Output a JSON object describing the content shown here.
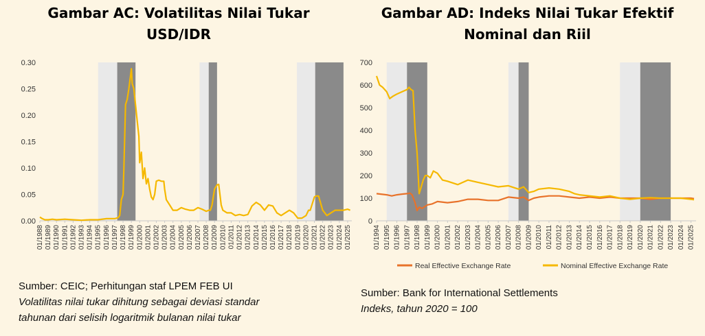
{
  "chart_data": [
    {
      "type": "line",
      "title_line1": "Gambar AC: Volatilitas Nilai Tukar",
      "title_line2": "USD/IDR",
      "ylim": [
        0,
        0.3
      ],
      "yticks": [
        "0.00",
        "0.05",
        "0.10",
        "0.15",
        "0.20",
        "0.25",
        "0.30"
      ],
      "xlim": [
        1988,
        2025.5
      ],
      "xticks": [
        "01/1988",
        "01/1989",
        "01/1990",
        "01/1991",
        "01/1992",
        "01/1993",
        "01/1994",
        "01/1995",
        "01/1996",
        "01/1997",
        "01/1998",
        "01/1999",
        "01/2000",
        "01/2001",
        "01/2002",
        "01/2003",
        "01/2004",
        "01/2005",
        "01/2006",
        "01/2007",
        "01/2008",
        "01/2009",
        "01/2010",
        "01/2011",
        "01/2012",
        "01/2013",
        "01/2014",
        "01/2015",
        "01/2016",
        "01/2017",
        "01/2018",
        "01/2019",
        "01/2020",
        "01/2021",
        "01/2022",
        "01/2023",
        "01/2024",
        "01/2025"
      ],
      "shading": [
        {
          "from": 1995.0,
          "to": 1997.3,
          "color": "#e9e9e9"
        },
        {
          "from": 1997.3,
          "to": 1999.5,
          "color": "#8a8a8a"
        },
        {
          "from": 2007.2,
          "to": 2008.3,
          "color": "#e9e9e9"
        },
        {
          "from": 2008.3,
          "to": 2009.3,
          "color": "#8a8a8a"
        },
        {
          "from": 2018.9,
          "to": 2021.1,
          "color": "#e9e9e9"
        },
        {
          "from": 2021.1,
          "to": 2024.5,
          "color": "#8a8a8a"
        }
      ],
      "series": [
        {
          "color": "#f5b800",
          "x": [
            1988.0,
            1988.3,
            1988.6,
            1989.0,
            1989.5,
            1990.0,
            1991.0,
            1992.0,
            1993.0,
            1994.0,
            1995.0,
            1996.0,
            1997.0,
            1997.4,
            1997.6,
            1997.8,
            1998.0,
            1998.1,
            1998.3,
            1998.5,
            1998.7,
            1998.9,
            1999.0,
            1999.1,
            1999.3,
            1999.5,
            1999.7,
            1999.9,
            2000.0,
            2000.2,
            2000.4,
            2000.6,
            2000.8,
            2001.0,
            2001.2,
            2001.4,
            2001.6,
            2001.8,
            2002.0,
            2002.3,
            2002.6,
            2002.9,
            2003.0,
            2003.2,
            2003.6,
            2004.0,
            2004.5,
            2005.0,
            2005.5,
            2006.0,
            2006.5,
            2007.0,
            2007.5,
            2008.0,
            2008.3,
            2008.5,
            2008.7,
            2009.0,
            2009.3,
            2009.5,
            2009.8,
            2010.0,
            2010.5,
            2011.0,
            2011.5,
            2012.0,
            2012.5,
            2013.0,
            2013.5,
            2014.0,
            2014.5,
            2015.0,
            2015.5,
            2016.0,
            2016.5,
            2017.0,
            2017.5,
            2018.0,
            2018.5,
            2019.0,
            2019.5,
            2020.0,
            2020.3,
            2020.5,
            2021.0,
            2021.2,
            2021.5,
            2022.0,
            2022.5,
            2023.0,
            2023.5,
            2024.0,
            2024.5,
            2025.0,
            2025.3
          ],
          "y": [
            0.007,
            0.004,
            0.002,
            0.002,
            0.003,
            0.002,
            0.003,
            0.002,
            0.001,
            0.002,
            0.002,
            0.004,
            0.004,
            0.006,
            0.01,
            0.04,
            0.05,
            0.1,
            0.22,
            0.23,
            0.25,
            0.275,
            0.288,
            0.26,
            0.25,
            0.22,
            0.19,
            0.16,
            0.11,
            0.13,
            0.08,
            0.1,
            0.07,
            0.08,
            0.06,
            0.045,
            0.04,
            0.05,
            0.075,
            0.077,
            0.075,
            0.075,
            0.06,
            0.04,
            0.03,
            0.02,
            0.02,
            0.025,
            0.022,
            0.02,
            0.02,
            0.025,
            0.022,
            0.018,
            0.02,
            0.02,
            0.03,
            0.06,
            0.068,
            0.069,
            0.03,
            0.02,
            0.015,
            0.015,
            0.01,
            0.012,
            0.01,
            0.012,
            0.028,
            0.035,
            0.03,
            0.02,
            0.03,
            0.028,
            0.015,
            0.01,
            0.015,
            0.02,
            0.015,
            0.005,
            0.005,
            0.01,
            0.02,
            0.02,
            0.045,
            0.047,
            0.047,
            0.02,
            0.01,
            0.015,
            0.02,
            0.02,
            0.02,
            0.022,
            0.02
          ]
        }
      ]
    },
    {
      "type": "line",
      "title_line1": "Gambar AD: Indeks Nilai Tukar Efektif",
      "title_line2": "Nominal dan Riil",
      "ylim": [
        0,
        700
      ],
      "yticks": [
        "0",
        "100",
        "200",
        "300",
        "400",
        "500",
        "600",
        "700"
      ],
      "xlim": [
        1994,
        2025.5
      ],
      "xticks": [
        "01/1994",
        "01/1995",
        "01/1996",
        "01/1997",
        "01/1998",
        "01/1999",
        "01/2000",
        "01/2001",
        "01/2002",
        "01/2003",
        "01/2004",
        "01/2005",
        "01/2006",
        "01/2007",
        "01/2008",
        "01/2009",
        "01/2010",
        "01/2011",
        "01/2012",
        "01/2013",
        "01/2014",
        "01/2015",
        "01/2016",
        "01/2017",
        "01/2018",
        "01/2019",
        "01/2020",
        "01/2021",
        "01/2022",
        "01/2023",
        "01/2024",
        "01/2025"
      ],
      "shading": [
        {
          "from": 1995.0,
          "to": 1997.0,
          "color": "#e9e9e9"
        },
        {
          "from": 1997.0,
          "to": 1999.0,
          "color": "#8a8a8a"
        },
        {
          "from": 2007.0,
          "to": 2008.0,
          "color": "#e9e9e9"
        },
        {
          "from": 2008.0,
          "to": 2009.0,
          "color": "#8a8a8a"
        },
        {
          "from": 2018.0,
          "to": 2020.0,
          "color": "#e9e9e9"
        },
        {
          "from": 2020.0,
          "to": 2023.0,
          "color": "#8a8a8a"
        }
      ],
      "legend": [
        {
          "name": "Real Effective Exchange Rate",
          "color": "#e8722a"
        },
        {
          "name": "Nominal Effective Exchange Rate",
          "color": "#f5b800"
        }
      ],
      "series": [
        {
          "name": "Real Effective Exchange Rate",
          "color": "#e8722a",
          "x": [
            1994.0,
            1995.0,
            1995.5,
            1996.0,
            1996.5,
            1997.0,
            1997.3,
            1997.5,
            1997.8,
            1998.0,
            1998.2,
            1998.5,
            1999.0,
            1999.5,
            2000.0,
            2001.0,
            2002.0,
            2003.0,
            2004.0,
            2005.0,
            2006.0,
            2007.0,
            2008.0,
            2008.5,
            2009.0,
            2009.5,
            2010.0,
            2011.0,
            2012.0,
            2013.0,
            2014.0,
            2015.0,
            2016.0,
            2017.0,
            2018.0,
            2019.0,
            2020.0,
            2021.0,
            2022.0,
            2023.0,
            2024.0,
            2025.0,
            2025.3
          ],
          "y": [
            120,
            115,
            110,
            115,
            118,
            120,
            122,
            115,
            80,
            45,
            60,
            55,
            70,
            75,
            85,
            80,
            85,
            95,
            95,
            90,
            90,
            105,
            100,
            105,
            90,
            100,
            105,
            110,
            110,
            105,
            100,
            105,
            100,
            105,
            100,
            100,
            100,
            95,
            100,
            100,
            100,
            100,
            98
          ]
        },
        {
          "name": "Nominal Effective Exchange Rate",
          "color": "#f5b800",
          "x": [
            1994.0,
            1994.3,
            1994.6,
            1995.0,
            1995.3,
            1995.6,
            1996.0,
            1996.5,
            1997.0,
            1997.2,
            1997.4,
            1997.6,
            1997.8,
            1998.0,
            1998.2,
            1998.4,
            1998.6,
            1998.8,
            1999.0,
            1999.3,
            1999.6,
            2000.0,
            2000.5,
            2001.0,
            2002.0,
            2003.0,
            2004.0,
            2005.0,
            2006.0,
            2007.0,
            2008.0,
            2008.5,
            2009.0,
            2009.5,
            2010.0,
            2011.0,
            2012.0,
            2013.0,
            2013.5,
            2014.0,
            2015.0,
            2016.0,
            2017.0,
            2018.0,
            2019.0,
            2020.0,
            2021.0,
            2022.0,
            2023.0,
            2024.0,
            2025.0,
            2025.3
          ],
          "y": [
            640,
            600,
            590,
            570,
            540,
            550,
            560,
            570,
            580,
            590,
            580,
            575,
            400,
            300,
            120,
            150,
            180,
            200,
            200,
            190,
            220,
            210,
            180,
            175,
            160,
            180,
            170,
            160,
            150,
            155,
            140,
            150,
            125,
            130,
            140,
            145,
            140,
            130,
            120,
            115,
            110,
            105,
            110,
            100,
            95,
            100,
            102,
            100,
            100,
            100,
            95,
            93
          ]
        }
      ]
    }
  ],
  "notes": [
    {
      "line1": "Sumber: CEIC; Perhitungan staf LPEM FEB UI",
      "line2": "Volatilitas nilai tukar dihitung sebagai deviasi standar",
      "line3": "tahunan dari selisih logaritmik bulanan nilai tukar"
    },
    {
      "line1": "Sumber: Bank for International Settlements",
      "line2": "Indeks, tahun 2020 = 100"
    }
  ]
}
